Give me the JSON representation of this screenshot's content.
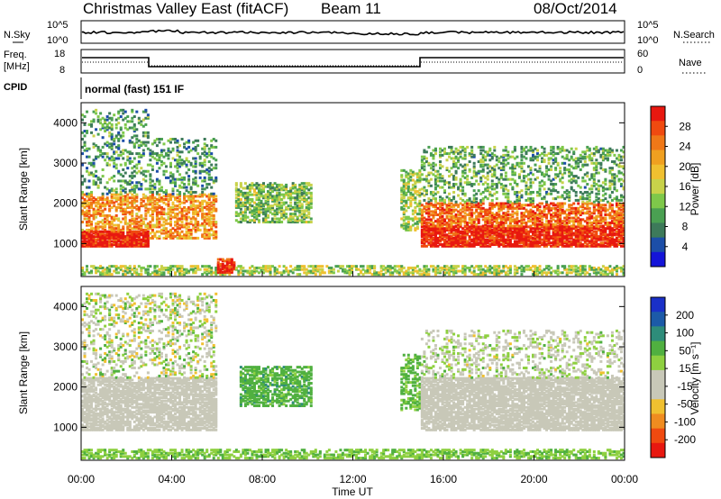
{
  "header": {
    "site": "Christmas Valley East (fitACF)",
    "beam": "Beam 11",
    "date": "08/Oct/2014"
  },
  "noise_panel": {
    "left_label": "N.Sky",
    "right_label": "N.Search",
    "left_ticks": [
      "10^5",
      "10^0"
    ],
    "right_ticks": [
      "10^5",
      "10^0"
    ]
  },
  "freq_panel": {
    "left_label_1": "Freq.",
    "left_label_2": "[MHz]",
    "right_label": "Nave",
    "left_ticks": [
      "18",
      "8"
    ],
    "right_ticks": [
      "60",
      "0"
    ]
  },
  "cpid": {
    "label": "CPID",
    "program": "normal (fast) 151 IF"
  },
  "colors": {
    "line": "#000000",
    "frame": "#000000"
  },
  "chart_data": [
    {
      "type": "heatmap",
      "name": "power",
      "ylabel": "Slant Range [km]",
      "yticks": [
        "1000",
        "2000",
        "3000",
        "4000"
      ],
      "ylim": [
        180,
        4500
      ],
      "xlim_hours": [
        0,
        24
      ],
      "colorbar": {
        "label": "Power [dB]",
        "ticks": [
          "28",
          "24",
          "20",
          "16",
          "12",
          "8",
          "4"
        ],
        "range": [
          0,
          30
        ],
        "colors": [
          "#1414d8",
          "#1c4ea8",
          "#3d7a5a",
          "#4aa052",
          "#7ec84a",
          "#c8d24a",
          "#f0c030",
          "#f0a020",
          "#f07818",
          "#f04a10",
          "#e81810"
        ]
      }
    },
    {
      "type": "heatmap",
      "name": "velocity",
      "ylabel": "Slant Range [km]",
      "xlabel": "Time UT",
      "yticks": [
        "1000",
        "2000",
        "3000",
        "4000"
      ],
      "xticks": [
        "00:00",
        "04:00",
        "08:00",
        "12:00",
        "16:00",
        "20:00",
        "00:00"
      ],
      "ylim": [
        180,
        4500
      ],
      "xlim_hours": [
        0,
        24
      ],
      "colorbar": {
        "label": "Velocity [m s⁻¹]",
        "ticks": [
          "200",
          "100",
          "50",
          "15",
          "-15",
          "-50",
          "-100",
          "-200"
        ],
        "range": [
          -250,
          250
        ],
        "colors": [
          "#e81810",
          "#f04a10",
          "#f08c20",
          "#f0c030",
          "#c8c8b8",
          "#c8c8b8",
          "#8ed040",
          "#50b040",
          "#2e8c7a",
          "#1c5aa8",
          "#1a30c8"
        ]
      }
    }
  ]
}
